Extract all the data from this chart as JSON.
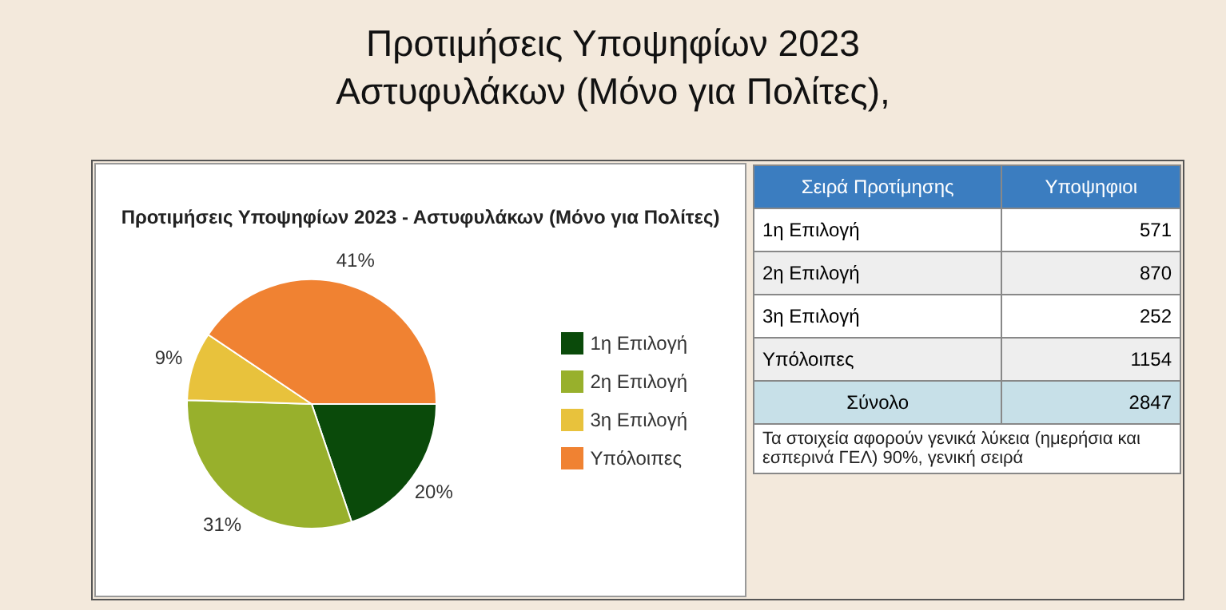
{
  "chart_data": {
    "type": "pie",
    "title": "Προτιμήσεις Υποψηφίων 2023\nΑστυφυλάκων (Μόνο για Πολίτες),",
    "subtitle": "Προτιμήσεις Υποψηφίων 2023 - Αστυφυλάκων (Μόνο για Πολίτες)",
    "categories": [
      "1η Επιλογή",
      "2η Επιλογή",
      "3η Επιλογή",
      "Υπόλοιπες"
    ],
    "values": [
      20,
      31,
      9,
      41
    ],
    "colors": [
      "#0a4a0a",
      "#98b02c",
      "#e8c23c",
      "#f08232"
    ],
    "value_labels": [
      "20%",
      "31%",
      "9%",
      "41%"
    ],
    "totals": [
      "2847"
    ],
    "legend": "right",
    "annotations": [
      "Σειρά Προτίμησης",
      "Υποψηφιοι",
      "Σύνολο",
      "Τα στοιχεία αφορούν γενικά λύκεια (ημερήσια και εσπερινά ΓΕΛ) 90%, γενική σειρά",
      "571",
      "870",
      "252",
      "1154"
    ]
  }
}
